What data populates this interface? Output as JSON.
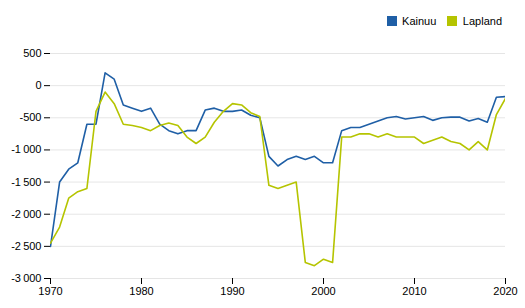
{
  "chart_data": {
    "type": "line",
    "x": [
      1970,
      1971,
      1972,
      1973,
      1974,
      1975,
      1976,
      1977,
      1978,
      1979,
      1980,
      1981,
      1982,
      1983,
      1984,
      1985,
      1986,
      1987,
      1988,
      1989,
      1990,
      1991,
      1992,
      1993,
      1994,
      1995,
      1996,
      1997,
      1998,
      1999,
      2000,
      2001,
      2002,
      2003,
      2004,
      2005,
      2006,
      2007,
      2008,
      2009,
      2010,
      2011,
      2012,
      2013,
      2014,
      2015,
      2016,
      2017,
      2018,
      2019,
      2020
    ],
    "series": [
      {
        "name": "Kainuu",
        "color": "#1f5fa6",
        "values": [
          -2500,
          -1500,
          -1300,
          -1200,
          -600,
          -600,
          200,
          100,
          -300,
          -350,
          -400,
          -350,
          -600,
          -700,
          -750,
          -700,
          -700,
          -380,
          -350,
          -400,
          -400,
          -380,
          -460,
          -500,
          -1100,
          -1250,
          -1150,
          -1100,
          -1150,
          -1100,
          -1200,
          -1200,
          -700,
          -650,
          -650,
          -600,
          -550,
          -500,
          -480,
          -520,
          -500,
          -480,
          -540,
          -500,
          -490,
          -490,
          -550,
          -510,
          -570,
          -180,
          -170
        ]
      },
      {
        "name": "Lapland",
        "color": "#b5c400",
        "values": [
          -2450,
          -2200,
          -1750,
          -1650,
          -1600,
          -400,
          -100,
          -280,
          -600,
          -620,
          -650,
          -700,
          -620,
          -580,
          -620,
          -800,
          -900,
          -800,
          -570,
          -400,
          -280,
          -300,
          -420,
          -480,
          -1550,
          -1600,
          -1550,
          -1500,
          -2750,
          -2800,
          -2700,
          -2750,
          -800,
          -800,
          -750,
          -750,
          -800,
          -750,
          -800,
          -800,
          -800,
          -900,
          -850,
          -800,
          -870,
          -900,
          -1000,
          -870,
          -1000,
          -450,
          -200
        ]
      }
    ],
    "xlim": [
      1970,
      2020
    ],
    "xticks": [
      1970,
      1980,
      1990,
      2000,
      2010,
      2020
    ],
    "ylim": [
      -3000,
      500
    ],
    "yticks": [
      {
        "value": -3000,
        "label": "-3 000"
      },
      {
        "value": -2500,
        "label": "-2 500"
      },
      {
        "value": -2000,
        "label": "-2 000"
      },
      {
        "value": -1500,
        "label": "-1 500"
      },
      {
        "value": -1000,
        "label": "-1 000"
      },
      -500,
      0,
      500
    ],
    "grid": true,
    "legend": "upper right"
  }
}
